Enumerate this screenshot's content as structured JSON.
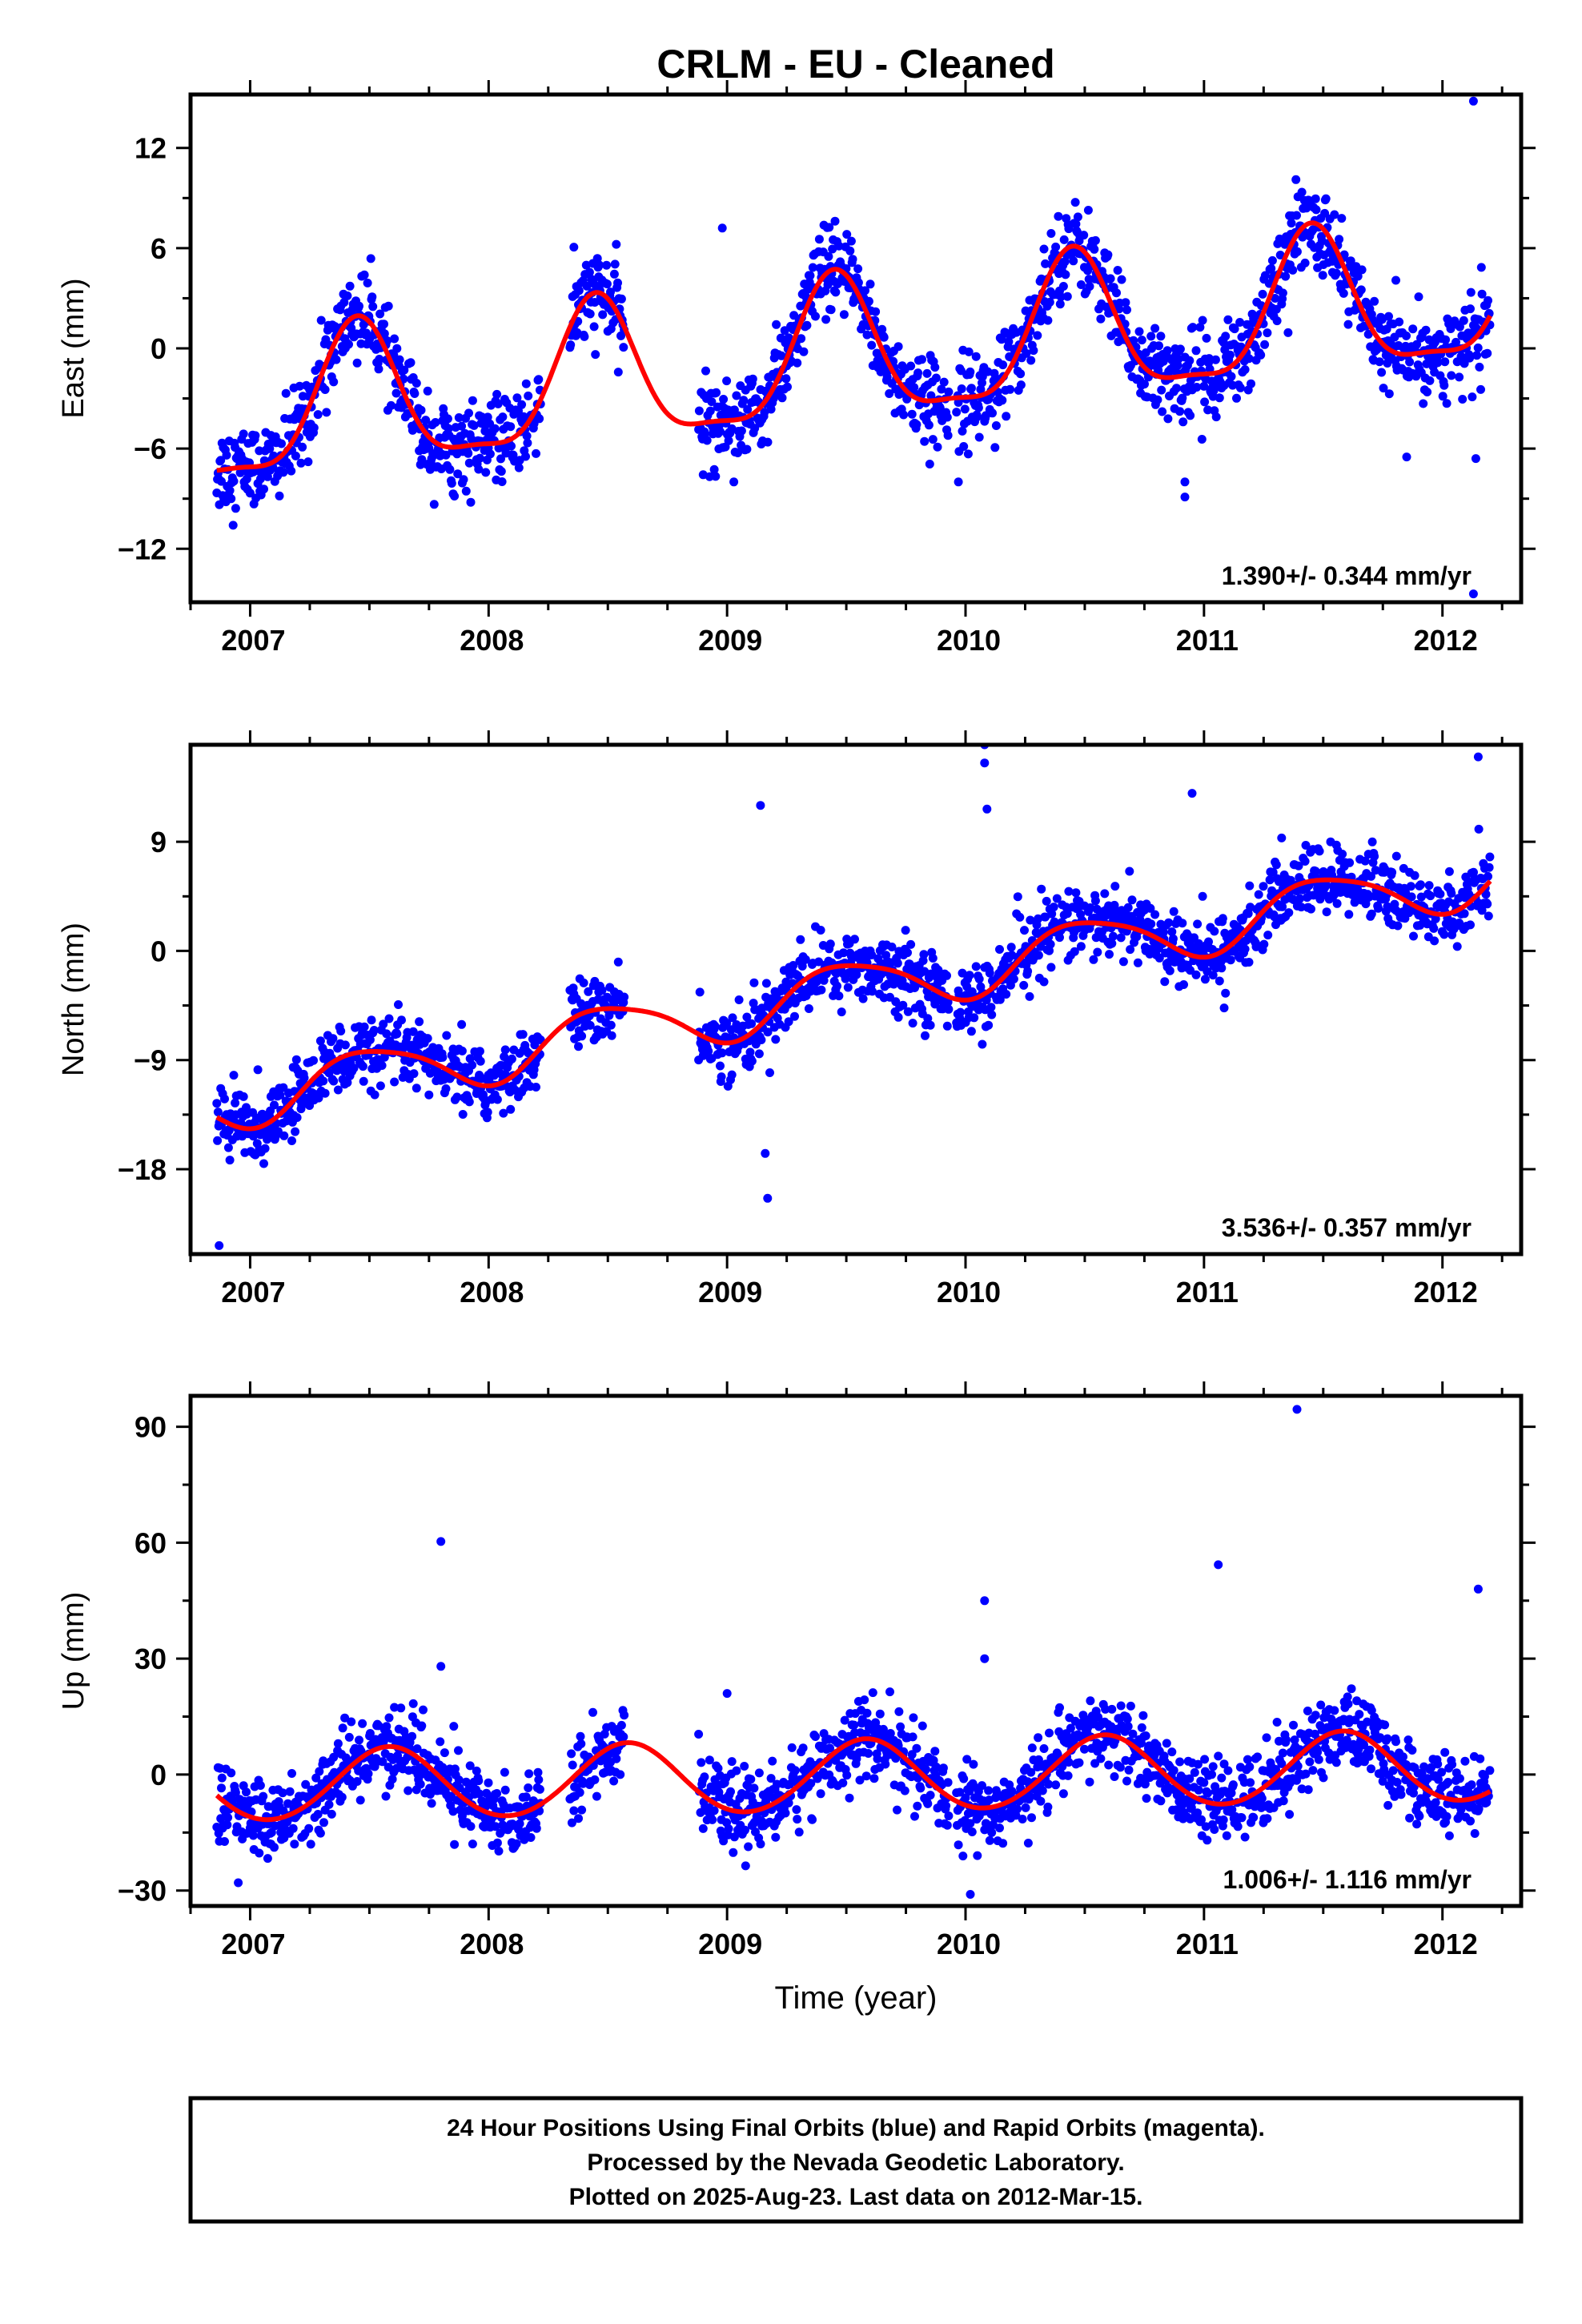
{
  "title": "CRLM  - EU - Cleaned",
  "colors": {
    "points": "#0000ff",
    "fit": "#ff0000",
    "frame": "#000000"
  },
  "x_axis": {
    "label": "Time (year)",
    "ticks": [
      "2007",
      "2008",
      "2009",
      "2010",
      "2011",
      "2012"
    ],
    "range": [
      2006.75,
      2012.33
    ]
  },
  "chart_data": [
    {
      "type": "scatter",
      "component": "East",
      "ylabel": "East (mm)",
      "ylim": [
        -15.2,
        15.2
      ],
      "yticks": [
        "12",
        "6",
        "0",
        "-6",
        "-12"
      ],
      "ytick_values": [
        12,
        6,
        0,
        -6,
        -12
      ],
      "rate_label": "1.390+/- 0.344 mm/yr",
      "fit": {
        "trend_mm_yr": 1.39,
        "offset": -0.6,
        "annual_amp": 4.2,
        "annual_peak": 0.45,
        "semiannual_amp": 1.2,
        "semiannual_peak": 0.45
      },
      "scatter_sd": 1.3,
      "outliers": [
        [
          2012.13,
          14.8
        ],
        [
          2012.13,
          -14.7
        ],
        [
          2010.92,
          -8.9
        ],
        [
          2010.92,
          -8.0
        ],
        [
          2009.97,
          -8.0
        ],
        [
          2012.14,
          -6.6
        ],
        [
          2011.85,
          -6.5
        ],
        [
          2008.98,
          7.2
        ]
      ]
    },
    {
      "type": "scatter",
      "component": "North",
      "ylabel": "North (mm)",
      "ylim": [
        -25,
        17
      ],
      "yticks": [
        "9",
        "0",
        "-9",
        "-18"
      ],
      "ytick_values": [
        9,
        0,
        -9,
        -18
      ],
      "rate_label": "3.536+/- 0.357 mm/yr",
      "fit": {
        "trend_mm_yr": 3.536,
        "offset": -3.2,
        "annual_amp": 2.3,
        "annual_peak": 0.5,
        "semiannual_amp": 0.4,
        "semiannual_peak": 0.3
      },
      "scatter_sd": 1.4,
      "outliers": [
        [
          2006.87,
          -24.3
        ],
        [
          2009.17,
          -20.4
        ],
        [
          2009.16,
          -16.7
        ],
        [
          2009.14,
          12.0
        ],
        [
          2010.08,
          17.0
        ],
        [
          2010.08,
          15.5
        ],
        [
          2010.09,
          11.7
        ],
        [
          2010.07,
          -7.7
        ],
        [
          2012.15,
          16.0
        ],
        [
          2010.95,
          13.0
        ]
      ]
    },
    {
      "type": "scatter",
      "component": "Up",
      "ylabel": "Up (mm)",
      "ylim": [
        -34,
        98
      ],
      "yticks": [
        "90",
        "60",
        "30",
        "0",
        "-30"
      ],
      "ytick_values": [
        90,
        60,
        30,
        0,
        -30
      ],
      "rate_label": "1.006+/- 1.116 mm/yr",
      "fit": {
        "trend_mm_yr": 1.006,
        "offset": -0.5,
        "annual_amp": 9.2,
        "annual_peak": 0.58,
        "semiannual_amp": 0.5,
        "semiannual_peak": 0.1
      },
      "scatter_sd": 5.0,
      "outliers": [
        [
          2011.39,
          94.5
        ],
        [
          2007.8,
          60.3
        ],
        [
          2011.06,
          54.3
        ],
        [
          2010.08,
          45.0
        ],
        [
          2012.15,
          48.0
        ],
        [
          2010.08,
          30.0
        ],
        [
          2007.8,
          28.0
        ],
        [
          2009.0,
          21.0
        ],
        [
          2006.95,
          -28.0
        ],
        [
          2010.02,
          -31.0
        ]
      ]
    }
  ],
  "footer": {
    "line1": "24 Hour Positions Using Final Orbits (blue) and Rapid Orbits (magenta).",
    "line2": "Processed by the Nevada Geodetic Laboratory.",
    "line3": "Plotted on 2025-Aug-23. Last data on 2012-Mar-15."
  }
}
